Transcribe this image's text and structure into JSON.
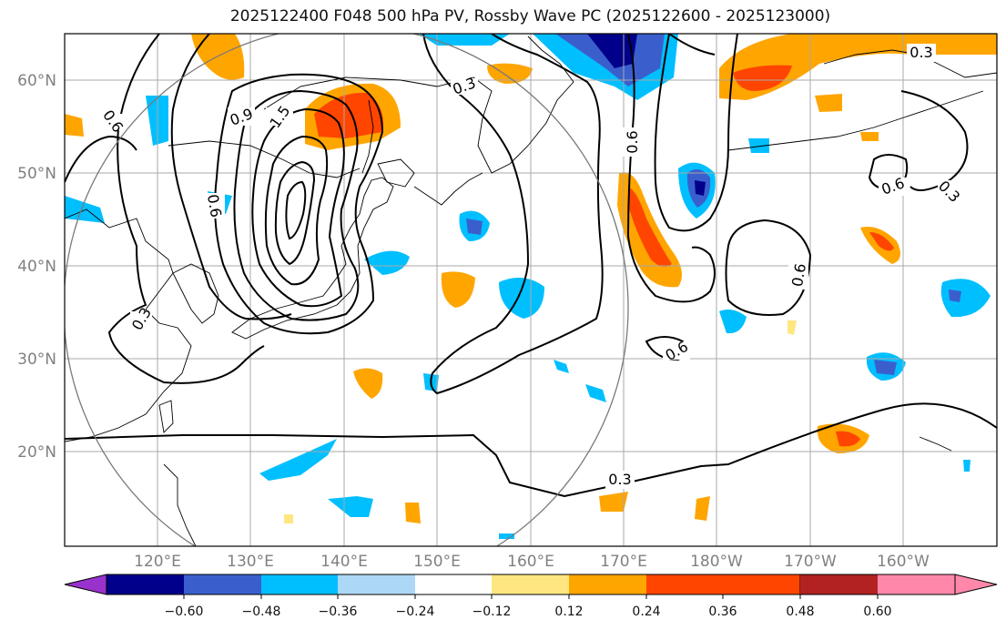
{
  "title": "2025122400 F048 500 hPa PV, Rossby Wave PC (2025122600 - 2025123000)",
  "lat_labels": [
    "60°N",
    "50°N",
    "40°N",
    "30°N",
    "20°N"
  ],
  "lon_labels": [
    "120°E",
    "130°E",
    "140°E",
    "150°E",
    "160°E",
    "170°E",
    "180°W",
    "170°W",
    "160°W"
  ],
  "contour_labels": [
    "0.3",
    "0.6",
    "0.9",
    "1.5",
    "0.6",
    "0.3",
    "0.6",
    "0.6",
    "0.6",
    "0.3",
    "0.3",
    "0.6",
    "0.3"
  ],
  "colorbar": {
    "ticks": [
      "−0.60",
      "−0.48",
      "−0.36",
      "−0.24",
      "−0.12",
      "0.12",
      "0.24",
      "0.36",
      "0.48",
      "0.60"
    ],
    "colors": [
      "#9932cc",
      "#00008b",
      "#3a5fcd",
      "#00bfff",
      "#add8f5",
      "#ffffff",
      "#ffe680",
      "#ffa500",
      "#ff4500",
      "#b22222",
      "#ff88aa"
    ]
  },
  "colors": {
    "contour": "#000000",
    "coast": "#000000",
    "grid": "#a0a0a0",
    "neg_light": "#add8f5",
    "neg_mid": "#00bfff",
    "neg_strong": "#3a5fcd",
    "neg_max": "#00008b",
    "pos_light": "#ffe680",
    "pos_mid": "#ffa500",
    "pos_strong": "#ff4500",
    "pos_max": "#b22222"
  }
}
